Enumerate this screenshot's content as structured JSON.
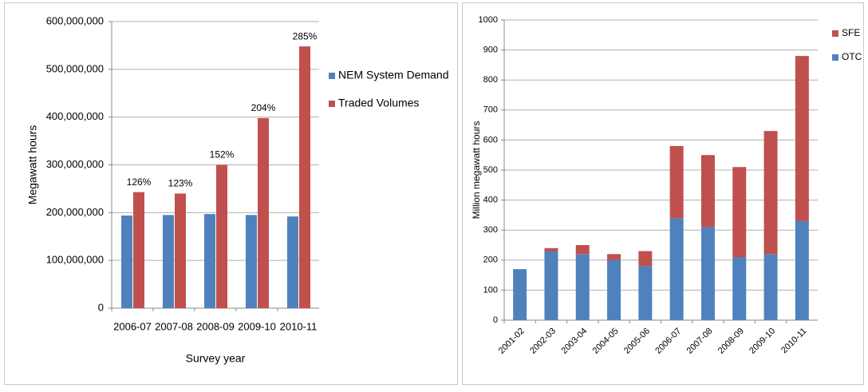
{
  "chart_data": [
    {
      "type": "bar",
      "stacked": false,
      "ylabel": "Megawatt hours",
      "xlabel": "Survey year",
      "categories": [
        "2006-07",
        "2007-08",
        "2008-09",
        "2009-10",
        "2010-11"
      ],
      "series": [
        {
          "name": "NEM System Demand",
          "color": "#4f81bd",
          "values": [
            194000000,
            195000000,
            197000000,
            195000000,
            192000000
          ]
        },
        {
          "name": "Traded Volumes",
          "color": "#c0504d",
          "values": [
            243000000,
            240000000,
            300000000,
            398000000,
            548000000
          ]
        }
      ],
      "annotations": [
        "126%",
        "123%",
        "152%",
        "204%",
        "285%"
      ],
      "ylim": [
        0,
        600000000
      ],
      "yticks": [
        0,
        {
          "value": 100000000,
          "label": "100,000,000"
        },
        {
          "value": 200000000,
          "label": "200,000,000"
        },
        {
          "value": 300000000,
          "label": "300,000,000"
        },
        {
          "value": 400000000,
          "label": "400,000,000"
        },
        {
          "value": 500000000,
          "label": "500,000,000"
        },
        {
          "value": 600000000,
          "label": "600,000,000"
        }
      ],
      "grid": true,
      "legend": "right"
    },
    {
      "type": "bar",
      "stacked": true,
      "ylabel": "Million megawatt hours",
      "categories": [
        "2001-02",
        "2002-03",
        "2003-04",
        "2004-05",
        "2005-06",
        "2006-07",
        "2007-08",
        "2008-09",
        "2009-10",
        "2010-11"
      ],
      "series": [
        {
          "name": "OTC",
          "color": "#4f81bd",
          "values": [
            170,
            230,
            220,
            200,
            180,
            340,
            310,
            210,
            220,
            330
          ]
        },
        {
          "name": "SFE",
          "color": "#c0504d",
          "values": [
            0,
            10,
            30,
            20,
            50,
            240,
            240,
            300,
            410,
            550
          ]
        }
      ],
      "ylim": [
        0,
        1000
      ],
      "yticks": [
        0,
        100,
        200,
        300,
        400,
        500,
        600,
        700,
        800,
        900,
        1000
      ],
      "grid": true,
      "legend": "right"
    }
  ]
}
